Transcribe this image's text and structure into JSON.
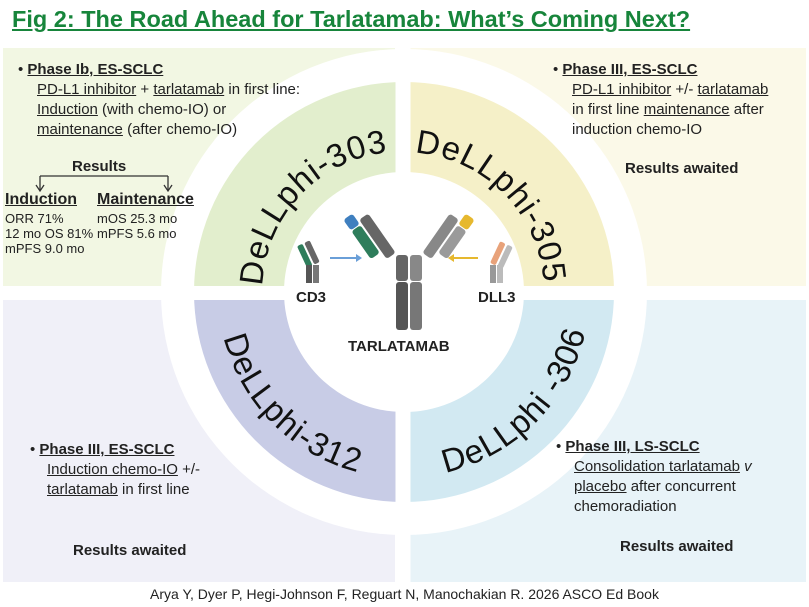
{
  "title": "Fig 2: The Road Ahead for Tarlatamab: What’s Coming Next?",
  "panels": [
    {
      "trial": "DeLLphi-303",
      "phase": "Phase Ib, ES-SCLC",
      "lines": [
        [
          "PD-L1 inhibitor",
          " + ",
          "tarlatamab",
          " in first line:"
        ],
        [
          "Induction",
          " (with chemo-IO) or"
        ],
        [
          "maintenance",
          " (after chemo-IO)"
        ]
      ],
      "results": {
        "heading": "Results",
        "columns": [
          {
            "name": "Induction",
            "items": [
              "ORR 71%",
              "12 mo OS 81%",
              "mPFS 9.0 mo"
            ]
          },
          {
            "name": "Maintenance",
            "items": [
              "mOS 25.3 mo",
              "mPFS 5.6 mo"
            ]
          }
        ]
      }
    },
    {
      "trial": "DeLLphi-305",
      "phase": "Phase III, ES-SCLC",
      "lines": [
        [
          "PD-L1 inhibitor",
          " +/- ",
          "tarlatamab"
        ],
        [
          "in first line ",
          "maintenance",
          " after"
        ],
        [
          "induction chemo-IO"
        ]
      ],
      "status": "Results awaited"
    },
    {
      "trial": "DeLLphi-312",
      "phase": "Phase III, ES-SCLC",
      "lines": [
        [
          "Induction chemo-IO",
          " +/-"
        ],
        [
          "tarlatamab",
          " in first line"
        ]
      ],
      "status": "Results awaited"
    },
    {
      "trial": "DeLLphi -306",
      "phase": "Phase III, LS-SCLC",
      "lines": [
        [
          "Consolidation tarlatamab",
          " ",
          "v"
        ],
        [
          "placebo",
          " after concurrent"
        ],
        [
          "chemoradiation"
        ]
      ],
      "status": "Results awaited"
    }
  ],
  "center": {
    "left": "CD3",
    "right": "DLL3",
    "drug": "TARLATAMAB"
  },
  "citation": "Arya Y, Dyer P, Hegi-Johnson F, Reguart N, Manochakian R. 2026 ASCO Ed Book"
}
